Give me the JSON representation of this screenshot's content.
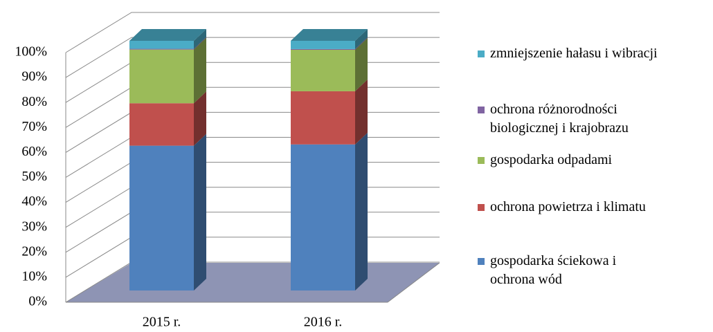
{
  "chart_data": {
    "type": "stacked-bar-3d",
    "categories": [
      "2015 r.",
      "2016 r."
    ],
    "series": [
      {
        "name": "gospodarka ściekowa i\nochrona wód",
        "color": "#4f81bd",
        "values": [
          58,
          58.5
        ]
      },
      {
        "name": "ochrona powietrza i klimatu",
        "color": "#c0504d",
        "values": [
          17,
          21.3
        ]
      },
      {
        "name": "gospodarka odpadami",
        "color": "#9bbb59",
        "values": [
          21.5,
          16.6
        ]
      },
      {
        "name": "ochrona różnorodności\nbiologicznej i krajobrazu",
        "color": "#8064a2",
        "values": [
          0.3,
          0.3
        ]
      },
      {
        "name": "zmniejszenie hałasu i wibracji",
        "color": "#4bacc6",
        "values": [
          3.2,
          3.3
        ]
      }
    ],
    "ylim": [
      0,
      100
    ],
    "yticks": [
      {
        "value": 0,
        "label": "0%"
      },
      {
        "value": 10,
        "label": "10%"
      },
      {
        "value": 20,
        "label": "20%"
      },
      {
        "value": 30,
        "label": "30%"
      },
      {
        "value": 40,
        "label": "40%"
      },
      {
        "value": 50,
        "label": "50%"
      },
      {
        "value": 60,
        "label": "60%"
      },
      {
        "value": 70,
        "label": "70%"
      },
      {
        "value": 80,
        "label": "80%"
      },
      {
        "value": 90,
        "label": "90%"
      },
      {
        "value": 100,
        "label": "100%"
      }
    ],
    "grid": true
  }
}
